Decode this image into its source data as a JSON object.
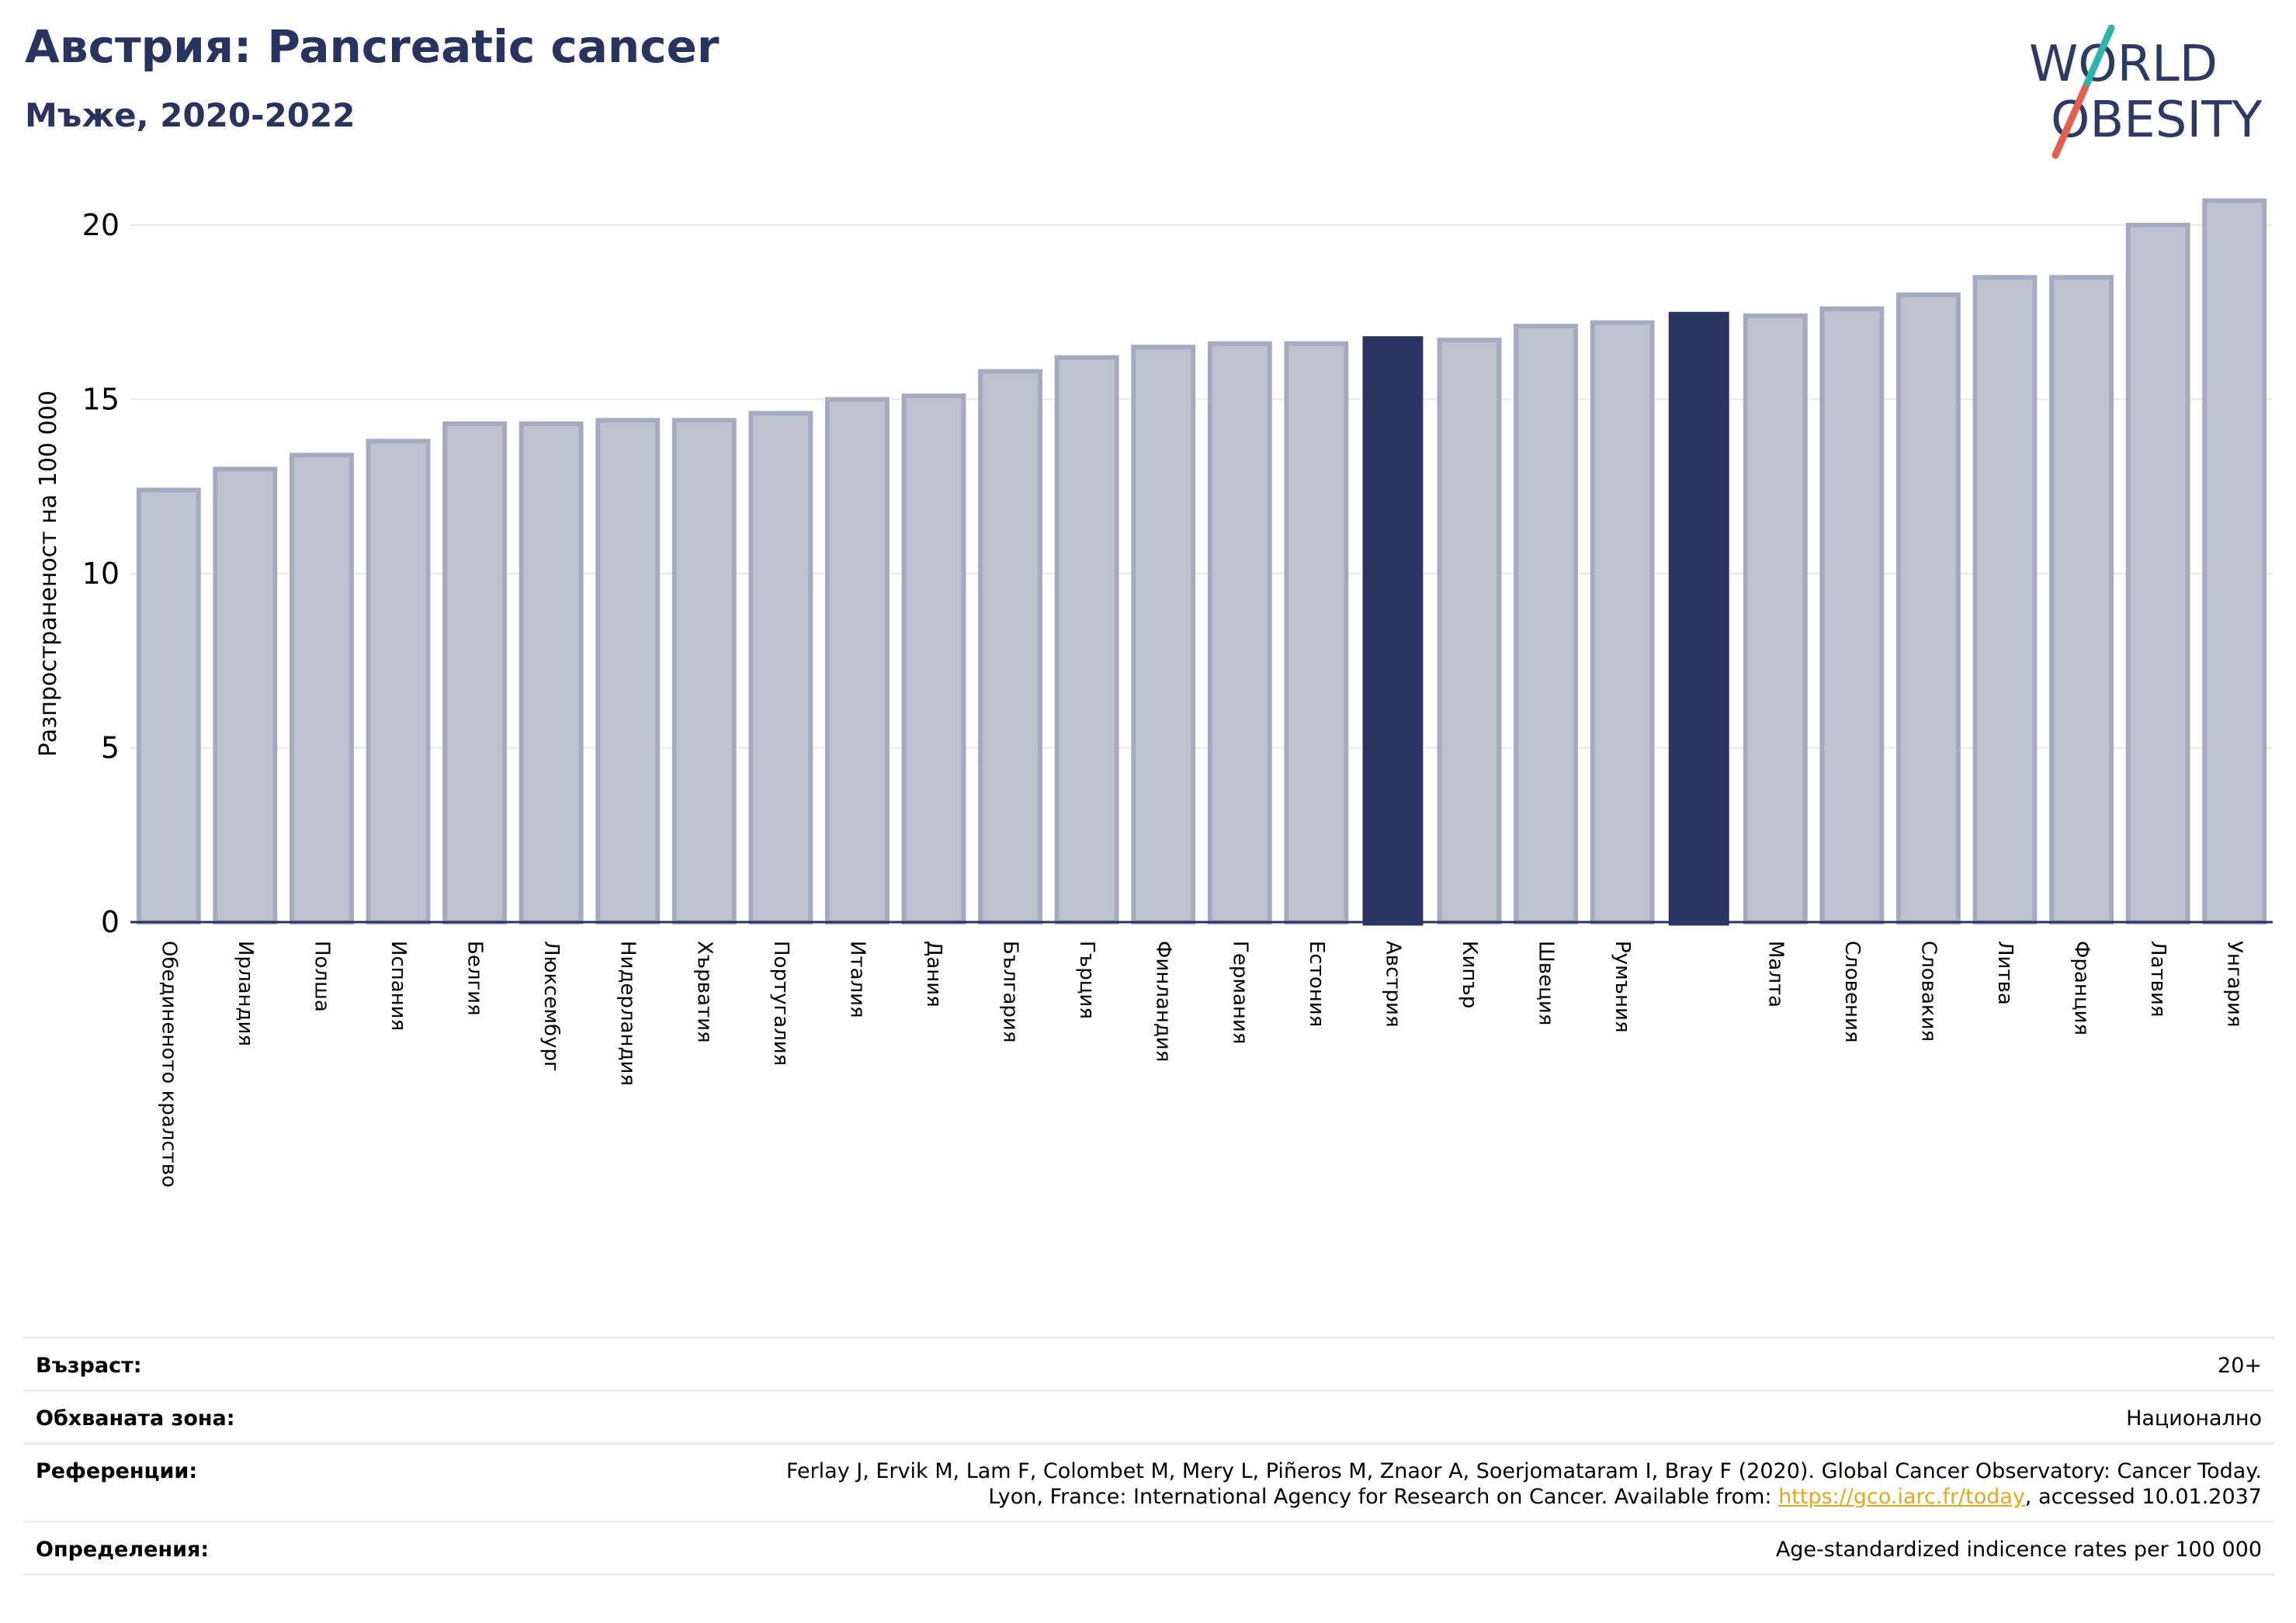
{
  "header": {
    "title": "Австрия: Pancreatic cancer",
    "subtitle": "Мъже, 2020-2022"
  },
  "logo": {
    "line1": "WORLD",
    "line2": "OBESITY",
    "text_color": "#2e3a66",
    "slash_top_color": "#2bb5ad",
    "slash_bottom_color": "#e3614b"
  },
  "colors": {
    "bar_default": "#bfc2ce",
    "bar_default_edge": "#a5aac0",
    "bar_highlight": "#293462",
    "grid": "#e8eaf0",
    "axis": "#283460"
  },
  "chart_data": {
    "type": "bar",
    "ylabel": "Разпространеност  на 100 000",
    "ylim": [
      0,
      21.5
    ],
    "yticks": [
      0,
      5,
      10,
      15,
      20
    ],
    "grid": "horizontal",
    "categories": [
      "Обединеното кралство",
      "Ирландия",
      "Полша",
      "Испания",
      "Белгия",
      "Люксембург",
      "Нидерландия",
      "Хърватия",
      "Португалия",
      "Италия",
      "Дания",
      "България",
      "Гърция",
      "Финландия",
      "Германия",
      "Естония",
      "Австрия",
      "Кипър",
      "Швеция",
      "Румъния",
      "",
      "Малта",
      "Словения",
      "Словакия",
      "Литва",
      "Франция",
      "Латвия",
      "Унгария"
    ],
    "values": [
      12.4,
      13.0,
      13.4,
      13.8,
      14.3,
      14.3,
      14.4,
      14.4,
      14.6,
      15.0,
      15.1,
      15.8,
      16.2,
      16.5,
      16.6,
      16.6,
      16.8,
      16.7,
      17.1,
      17.2,
      17.5,
      17.4,
      17.6,
      18.0,
      18.5,
      18.5,
      20.0,
      20.7
    ],
    "highlighted": [
      16,
      20
    ]
  },
  "info": {
    "age_label": "Възраст:",
    "age_value": "20+",
    "zone_label": "Обхваната зона:",
    "zone_value": "Национално",
    "ref_label": "Референции:",
    "ref_line1": "Ferlay J, Ervik M, Lam F, Colombet M, Mery L, Piñeros M, Znaor A, Soerjomataram I, Bray F (2020). Global Cancer Observatory: Cancer Today.",
    "ref_line2_pre": "Lyon, France: International Agency for Research on Cancer. Available from: ",
    "ref_link": "https://gco.iarc.fr/today",
    "ref_line2_post": ", accessed 10.01.2037",
    "def_label": "Определения:",
    "def_value": "Age-standardized indicence rates per 100 000"
  }
}
